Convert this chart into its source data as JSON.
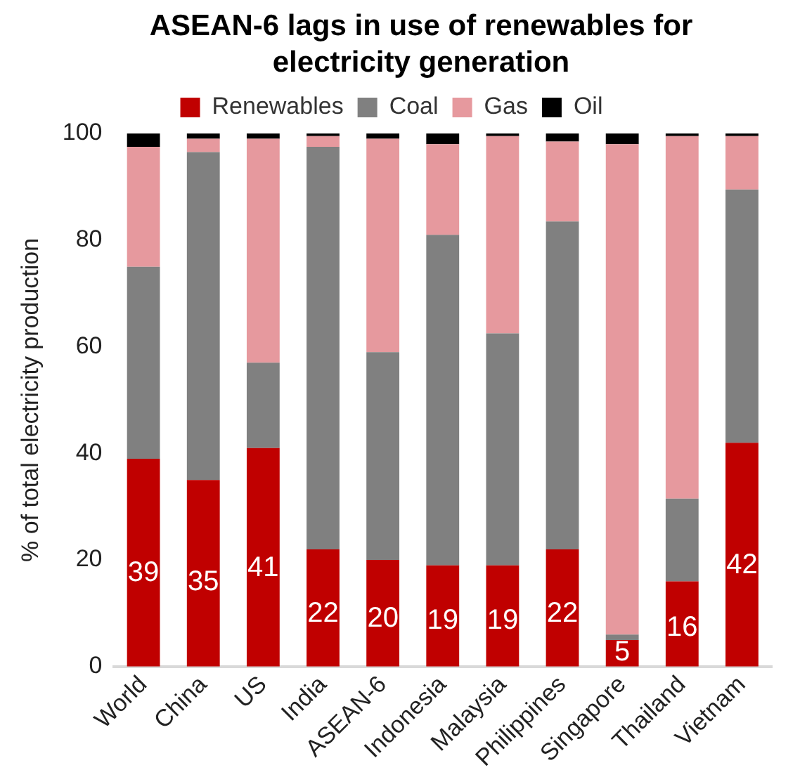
{
  "chart_data": {
    "type": "bar",
    "title": "ASEAN-6 lags in use of renewables for electricity generation",
    "ylabel": "% of total electricity production",
    "categories": [
      "World",
      "China",
      "US",
      "India",
      "ASEAN-6",
      "Indonesia",
      "Malaysia",
      "Philippines",
      "Singapore",
      "Thailand",
      "Vietnam"
    ],
    "stacked": true,
    "legend": "top",
    "grid": false,
    "ylim": [
      0,
      100
    ],
    "yticks": [
      0,
      20,
      40,
      60,
      80,
      100
    ],
    "series": [
      {
        "name": "Renewables",
        "color": "#c00000",
        "values": [
          39,
          35,
          41,
          22,
          20,
          19,
          19,
          22,
          5,
          16,
          42
        ],
        "value_labels": [
          "39",
          "35",
          "41",
          "22",
          "20",
          "19",
          "19",
          "22",
          "5",
          "16",
          "42"
        ]
      },
      {
        "name": "Coal",
        "color": "#808080",
        "values": [
          36,
          61.5,
          16,
          75.5,
          39,
          62,
          43.5,
          61.5,
          1,
          15.5,
          47.5
        ]
      },
      {
        "name": "Gas",
        "color": "#e6999e",
        "values": [
          22.5,
          2.5,
          42,
          2,
          40,
          17,
          37,
          15,
          92,
          68,
          10
        ]
      },
      {
        "name": "Oil",
        "color": "#000000",
        "values": [
          2.5,
          1,
          1,
          0.5,
          1,
          2,
          0.5,
          1.5,
          2,
          0.5,
          0.5
        ]
      }
    ]
  }
}
